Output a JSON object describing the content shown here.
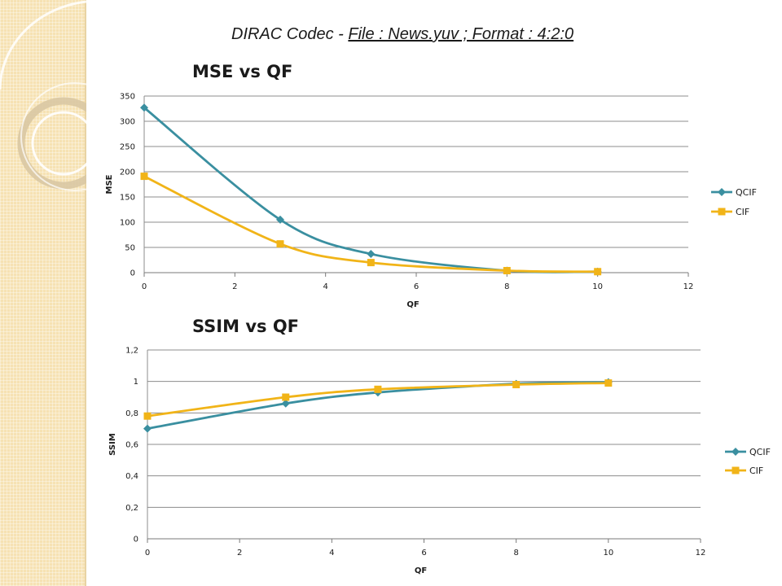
{
  "slide_title_prefix": "DIRAC Codec - ",
  "slide_title_link": "File : News.yuv ; Format : 4:2:0",
  "colors": {
    "qcif": "#3a8fa0",
    "cif": "#f1b418",
    "grid": "#8c8c8c",
    "side_panel": "#f6e2b3"
  },
  "chart_data": [
    {
      "type": "line",
      "title": "MSE vs QF",
      "xlabel": "QF",
      "ylabel": "MSE",
      "xlim": [
        0,
        12
      ],
      "ylim": [
        0,
        350
      ],
      "xticks": [
        0,
        2,
        4,
        6,
        8,
        10,
        12
      ],
      "yticks": [
        0,
        50,
        100,
        150,
        200,
        250,
        300,
        350
      ],
      "xtick_labels": [
        "0",
        "2",
        "4",
        "6",
        "8",
        "10",
        "12"
      ],
      "ytick_labels": [
        "0",
        "50",
        "100",
        "150",
        "200",
        "250",
        "300",
        "350"
      ],
      "grid": "horizontal",
      "legend": "right",
      "smooth": true,
      "series": [
        {
          "name": "QCIF",
          "marker": "diamond",
          "x": [
            0,
            3,
            5,
            8,
            10
          ],
          "y": [
            327,
            105,
            37,
            4,
            2
          ]
        },
        {
          "name": "CIF",
          "marker": "square",
          "x": [
            0,
            3,
            5,
            8,
            10
          ],
          "y": [
            191,
            57,
            20,
            4,
            2
          ]
        }
      ]
    },
    {
      "type": "line",
      "title": "SSIM vs QF",
      "xlabel": "QF",
      "ylabel": "SSIM",
      "xlim": [
        0,
        12
      ],
      "ylim": [
        0,
        1.2
      ],
      "xticks": [
        0,
        2,
        4,
        6,
        8,
        10,
        12
      ],
      "yticks": [
        0,
        0.2,
        0.4,
        0.6,
        0.8,
        1,
        1.2
      ],
      "xtick_labels": [
        "0",
        "2",
        "4",
        "6",
        "8",
        "10",
        "12"
      ],
      "ytick_labels": [
        "0",
        "0,2",
        "0,4",
        "0,6",
        "0,8",
        "1",
        "1,2"
      ],
      "grid": "horizontal",
      "legend": "right",
      "smooth": true,
      "series": [
        {
          "name": "QCIF",
          "marker": "diamond",
          "x": [
            0,
            3,
            5,
            8,
            10
          ],
          "y": [
            0.7,
            0.86,
            0.93,
            0.985,
            0.995
          ]
        },
        {
          "name": "CIF",
          "marker": "square",
          "x": [
            0,
            3,
            5,
            8,
            10
          ],
          "y": [
            0.78,
            0.9,
            0.95,
            0.98,
            0.99
          ]
        }
      ]
    }
  ]
}
